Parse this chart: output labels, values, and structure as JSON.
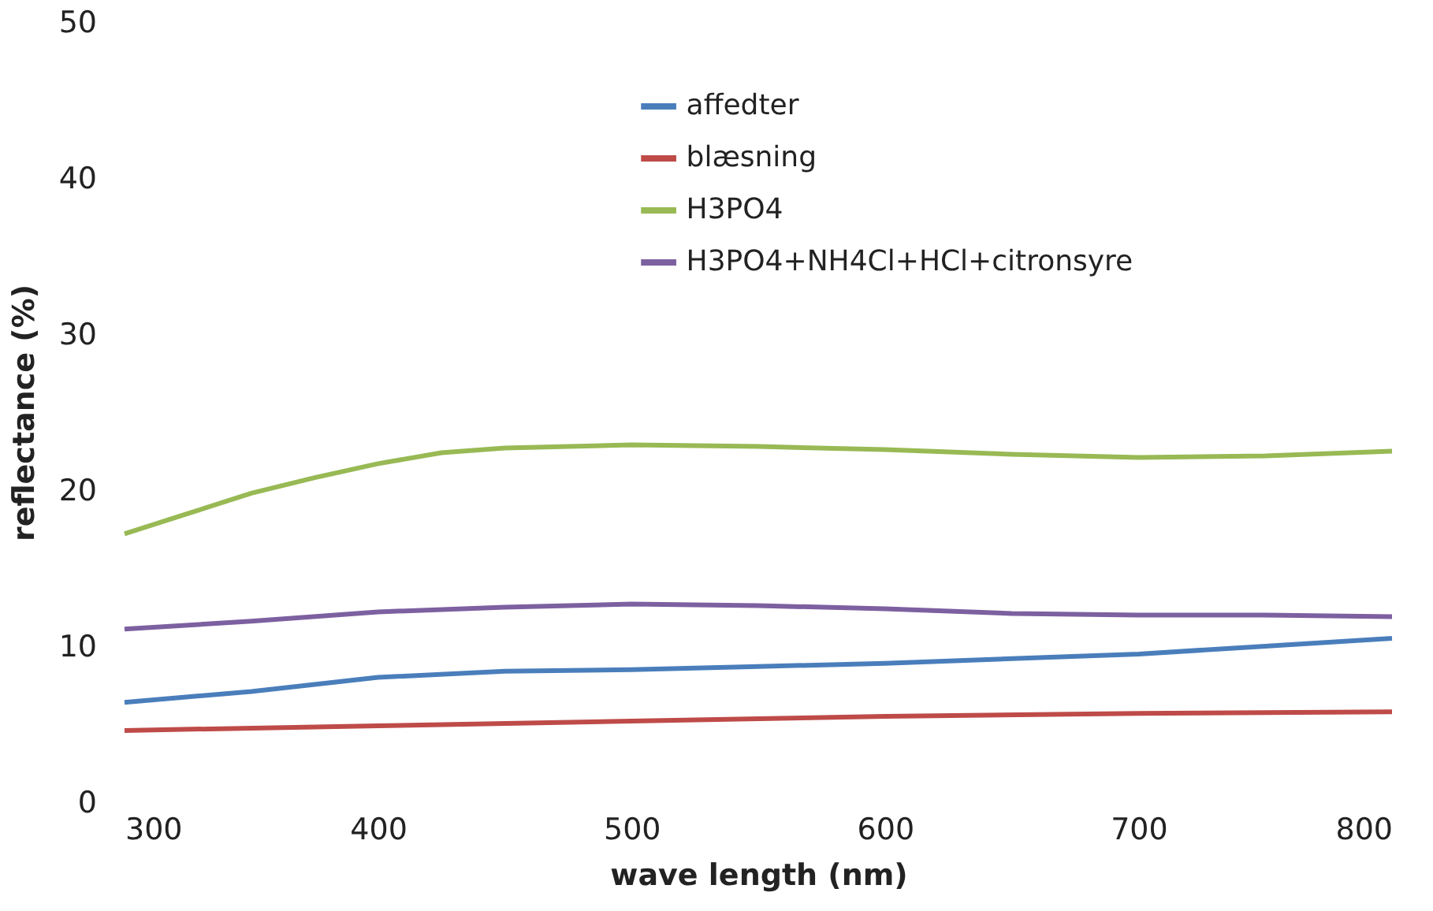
{
  "chart_data": {
    "type": "line",
    "xlabel": "wave length (nm)",
    "ylabel": "reflectance (%)",
    "xlim": [
      300,
      800
    ],
    "xticks": [
      300,
      400,
      500,
      600,
      700,
      800
    ],
    "ylim": [
      0,
      50
    ],
    "yticks": [
      0,
      10,
      20,
      30,
      40,
      50
    ],
    "grid": false,
    "legend": "top",
    "marker": "none",
    "line_style": "solid",
    "series": [
      {
        "name": "affedter",
        "color": "#4a7ebb",
        "x": [
          300,
          350,
          400,
          450,
          500,
          550,
          600,
          650,
          700,
          750,
          800
        ],
        "values": [
          6.4,
          7.1,
          8.0,
          8.4,
          8.5,
          8.7,
          8.9,
          9.2,
          9.5,
          10.0,
          10.5
        ]
      },
      {
        "name": "blæsning",
        "color": "#be4b48",
        "x": [
          300,
          400,
          500,
          600,
          700,
          800
        ],
        "values": [
          4.6,
          4.9,
          5.2,
          5.5,
          5.7,
          5.8
        ]
      },
      {
        "name": "H3PO4",
        "color": "#98b954",
        "x": [
          300,
          325,
          350,
          375,
          400,
          425,
          450,
          500,
          550,
          600,
          650,
          700,
          750,
          800
        ],
        "values": [
          17.2,
          18.5,
          19.8,
          20.8,
          21.7,
          22.4,
          22.7,
          22.9,
          22.8,
          22.6,
          22.3,
          22.1,
          22.2,
          22.5
        ]
      },
      {
        "name": "H3PO4+NH4Cl+HCl+citronsyre",
        "color": "#7d60a0",
        "x": [
          300,
          350,
          400,
          450,
          500,
          550,
          600,
          650,
          700,
          750,
          800
        ],
        "values": [
          11.1,
          11.6,
          12.2,
          12.5,
          12.7,
          12.6,
          12.4,
          12.1,
          12.0,
          12.0,
          11.9
        ]
      }
    ]
  }
}
